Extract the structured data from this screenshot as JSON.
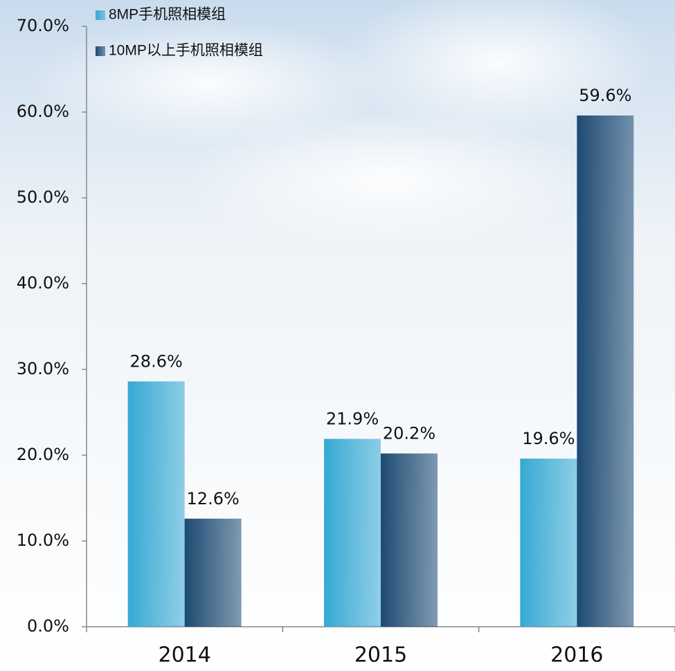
{
  "chart_data": {
    "type": "bar",
    "categories": [
      "2014",
      "2015",
      "2016"
    ],
    "series": [
      {
        "name": "8MP手机照相模组",
        "color": "#36a9d3",
        "values": [
          28.6,
          21.9,
          19.6
        ],
        "value_labels": [
          "28.6%",
          "21.9%",
          "19.6%"
        ]
      },
      {
        "name": "10MP以上手机照相模组",
        "color": "#1d4a72",
        "values": [
          12.6,
          20.2,
          59.6
        ],
        "value_labels": [
          "12.6%",
          "20.2%",
          "59.6%"
        ]
      }
    ],
    "ylim": [
      0,
      70
    ],
    "yticks": [
      {
        "value": 0,
        "label": "0.0%"
      },
      {
        "value": 10,
        "label": "10.0%"
      },
      {
        "value": 20,
        "label": "20.0%"
      },
      {
        "value": 30,
        "label": "30.0%"
      },
      {
        "value": 40,
        "label": "40.0%"
      },
      {
        "value": 50,
        "label": "50.0%"
      },
      {
        "value": 60,
        "label": "60.0%"
      },
      {
        "value": 70,
        "label": "70.0%"
      }
    ],
    "grid": false,
    "legend": "top-left"
  }
}
